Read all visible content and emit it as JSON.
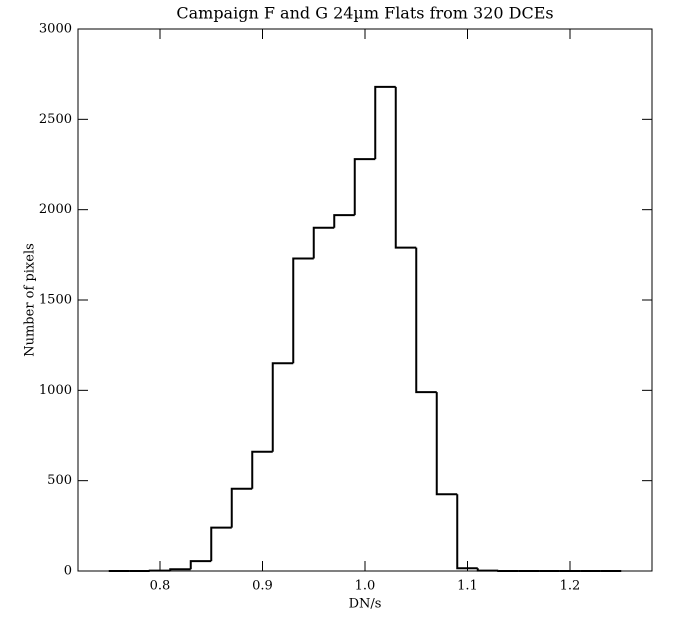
{
  "chart_data": {
    "type": "histogram",
    "title": "Campaign F and G 24µm Flats from 320 DCEs",
    "x_label": "DN/s",
    "y_label": "Number of pixels",
    "bins": [
      0.75,
      0.77,
      0.79,
      0.81,
      0.83,
      0.85,
      0.87,
      0.89,
      0.91,
      0.93,
      0.95,
      0.97,
      0.99,
      1.01,
      1.03,
      1.05,
      1.07,
      1.09,
      1.11,
      1.13,
      1.15,
      1.17,
      1.19,
      1.21,
      1.23,
      1.25
    ],
    "values": [
      0,
      0,
      2,
      10,
      55,
      240,
      455,
      660,
      1150,
      1730,
      1900,
      1970,
      2280,
      2680,
      1790,
      990,
      425,
      15,
      2,
      0,
      0,
      0,
      0,
      0,
      0
    ],
    "color": "#000000",
    "xlim": [
      0.72,
      1.28
    ],
    "ylim": [
      0,
      3000
    ],
    "xticks": [
      0.8,
      0.9,
      {
        "value": 1,
        "label": "1.0"
      },
      1.1,
      1.2
    ],
    "yticks": [
      0,
      500,
      1000,
      1500,
      2000,
      2500,
      3000
    ]
  }
}
